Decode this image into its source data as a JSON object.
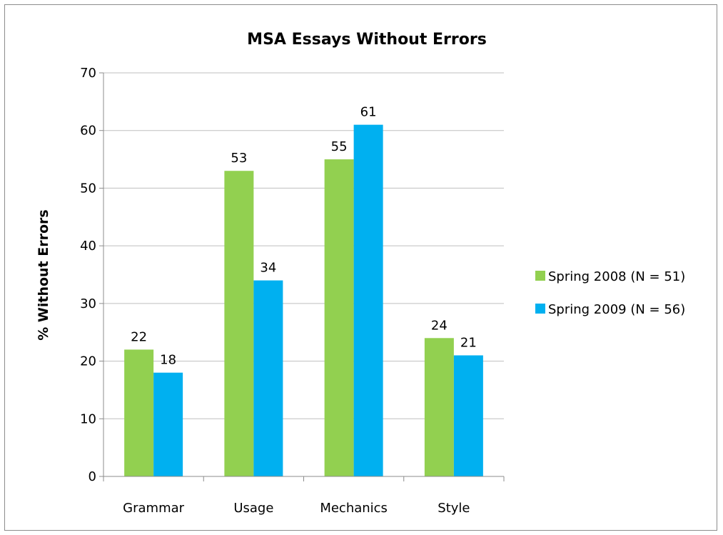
{
  "chart_data": {
    "type": "bar",
    "title": "MSA Essays Without Errors",
    "xlabel": "",
    "ylabel": "% Without Errors",
    "ylim": [
      0,
      70
    ],
    "yticks": [
      0,
      10,
      20,
      30,
      40,
      50,
      60,
      70
    ],
    "categories": [
      "Grammar",
      "Usage",
      "Mechanics",
      "Style"
    ],
    "series": [
      {
        "name": "Spring 2008 (N = 51)",
        "color": "#92d050",
        "values": [
          22,
          53,
          55,
          24
        ]
      },
      {
        "name": "Spring 2009 (N = 56)",
        "color": "#00b0f0",
        "values": [
          18,
          34,
          61,
          21
        ]
      }
    ],
    "data_labels": true,
    "grid": true,
    "legend_position": "right"
  }
}
